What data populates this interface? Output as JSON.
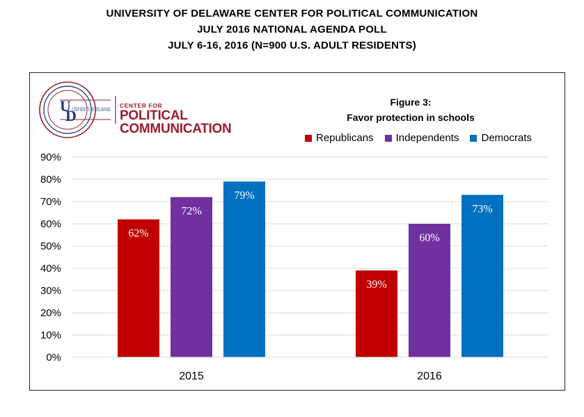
{
  "header": {
    "line1": "UNIVERSITY OF DELAWARE CENTER FOR POLITICAL COMMUNICATION",
    "line2": "JULY 2016 NATIONAL AGENDA POLL",
    "line3": "JULY 6-16, 2016 (N=900 U.S. ADULT RESIDENTS)"
  },
  "logo": {
    "ud_text": "UNIVERSITY OF DELAWARE",
    "center_for": "CENTER FOR",
    "political": "POLITICAL",
    "communication": "COMMUNICATION"
  },
  "chart_data": {
    "type": "bar",
    "title": "Figure 3:",
    "subtitle": "Favor protection in schools",
    "categories": [
      "2015",
      "2016"
    ],
    "series": [
      {
        "name": "Republicans",
        "values": [
          62,
          39
        ],
        "color": "#c00000"
      },
      {
        "name": "Independents",
        "values": [
          72,
          60
        ],
        "color": "#7030a0"
      },
      {
        "name": "Democrats",
        "values": [
          79,
          73
        ],
        "color": "#0070c0"
      }
    ],
    "data_labels": [
      [
        "62%",
        "39%"
      ],
      [
        "72%",
        "60%"
      ],
      [
        "79%",
        "73%"
      ]
    ],
    "ylim": [
      0,
      90
    ],
    "yticks": [
      0,
      10,
      20,
      30,
      40,
      50,
      60,
      70,
      80,
      90
    ],
    "ytick_labels": [
      "0%",
      "10%",
      "20%",
      "30%",
      "40%",
      "50%",
      "60%",
      "70%",
      "80%",
      "90%"
    ],
    "grid": true,
    "legend": "top-right"
  }
}
